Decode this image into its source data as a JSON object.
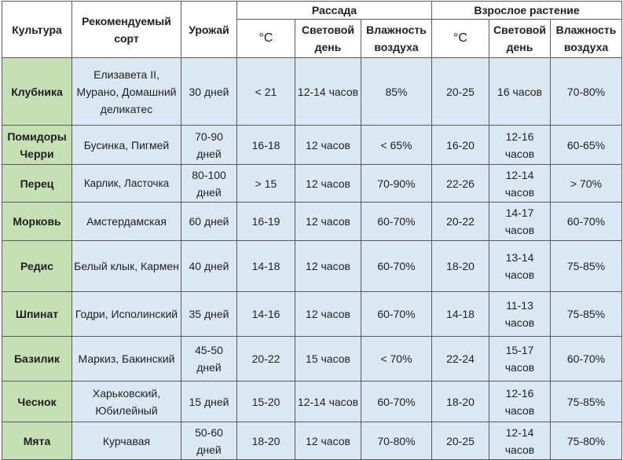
{
  "headers": {
    "crop": "Культура",
    "variety": "Рекомендуемый сорт",
    "harvest": "Урожай",
    "seedlings": "Рассада",
    "adult": "Взрослое растение",
    "temp": "°C",
    "light": "Световой день",
    "humidity": "Влажность воздуха"
  },
  "rows": [
    {
      "crop": "Клубника",
      "variety": "Елизавета II, Мурано, Домашний деликатес",
      "harvest": "30 дней",
      "s_temp": "< 21",
      "s_light": "12-14 часов",
      "s_hum": "85%",
      "a_temp": "20-25",
      "a_light": "16 часов",
      "a_hum": "70-80%"
    },
    {
      "crop": "Помидоры Черри",
      "variety": "Бусинка, Пигмей",
      "harvest": "70-90 дней",
      "s_temp": "16-18",
      "s_light": "12 часов",
      "s_hum": "< 65%",
      "a_temp": "16-20",
      "a_light": "12-16 часов",
      "a_hum": "60-65%"
    },
    {
      "crop": "Перец",
      "variety": "Карлик, Ласточка",
      "harvest": "80-100 дней",
      "s_temp": "> 15",
      "s_light": "12 часов",
      "s_hum": "70-90%",
      "a_temp": "22-26",
      "a_light": "12-14 часов",
      "a_hum": "> 70%"
    },
    {
      "crop": "Морковь",
      "variety": "Амстердамская",
      "harvest": "60 дней",
      "s_temp": "16-19",
      "s_light": "12 часов",
      "s_hum": "60-70%",
      "a_temp": "20-22",
      "a_light": "14-17 часов",
      "a_hum": "60-70%"
    },
    {
      "crop": "Редис",
      "variety": "Белый клык, Кармен",
      "harvest": "40 дней",
      "s_temp": "14-18",
      "s_light": "12 часов",
      "s_hum": "60-70%",
      "a_temp": "18-20",
      "a_light": "13-14 часов",
      "a_hum": "75-85%"
    },
    {
      "crop": "Шпинат",
      "variety": "Годри, Исполинский",
      "harvest": "35 дней",
      "s_temp": "14-16",
      "s_light": "12 часов",
      "s_hum": "60-70%",
      "a_temp": "14-18",
      "a_light": "11-13 часов",
      "a_hum": "75-85%"
    },
    {
      "crop": "Базилик",
      "variety": "Маркиз, Бакинский",
      "harvest": "45-50 дней",
      "s_temp": "20-22",
      "s_light": "15 часов",
      "s_hum": "< 70%",
      "a_temp": "22-24",
      "a_light": "15-17 часов",
      "a_hum": "60-70%"
    },
    {
      "crop": "Чеснок",
      "variety": "Харьковский, Юбилейный",
      "harvest": "15 дней",
      "s_temp": "15-20",
      "s_light": "12-14 часов",
      "s_hum": "60-70%",
      "a_temp": "18-20",
      "a_light": "12-16 часов",
      "a_hum": "75-85%"
    },
    {
      "crop": "Мята",
      "variety": "Курчавая",
      "harvest": "50-60 дней",
      "s_temp": "18-20",
      "s_light": "12 часов",
      "s_hum": "70-80%",
      "a_temp": "20-25",
      "a_light": "12-14 часов",
      "a_hum": "75-80%"
    }
  ]
}
